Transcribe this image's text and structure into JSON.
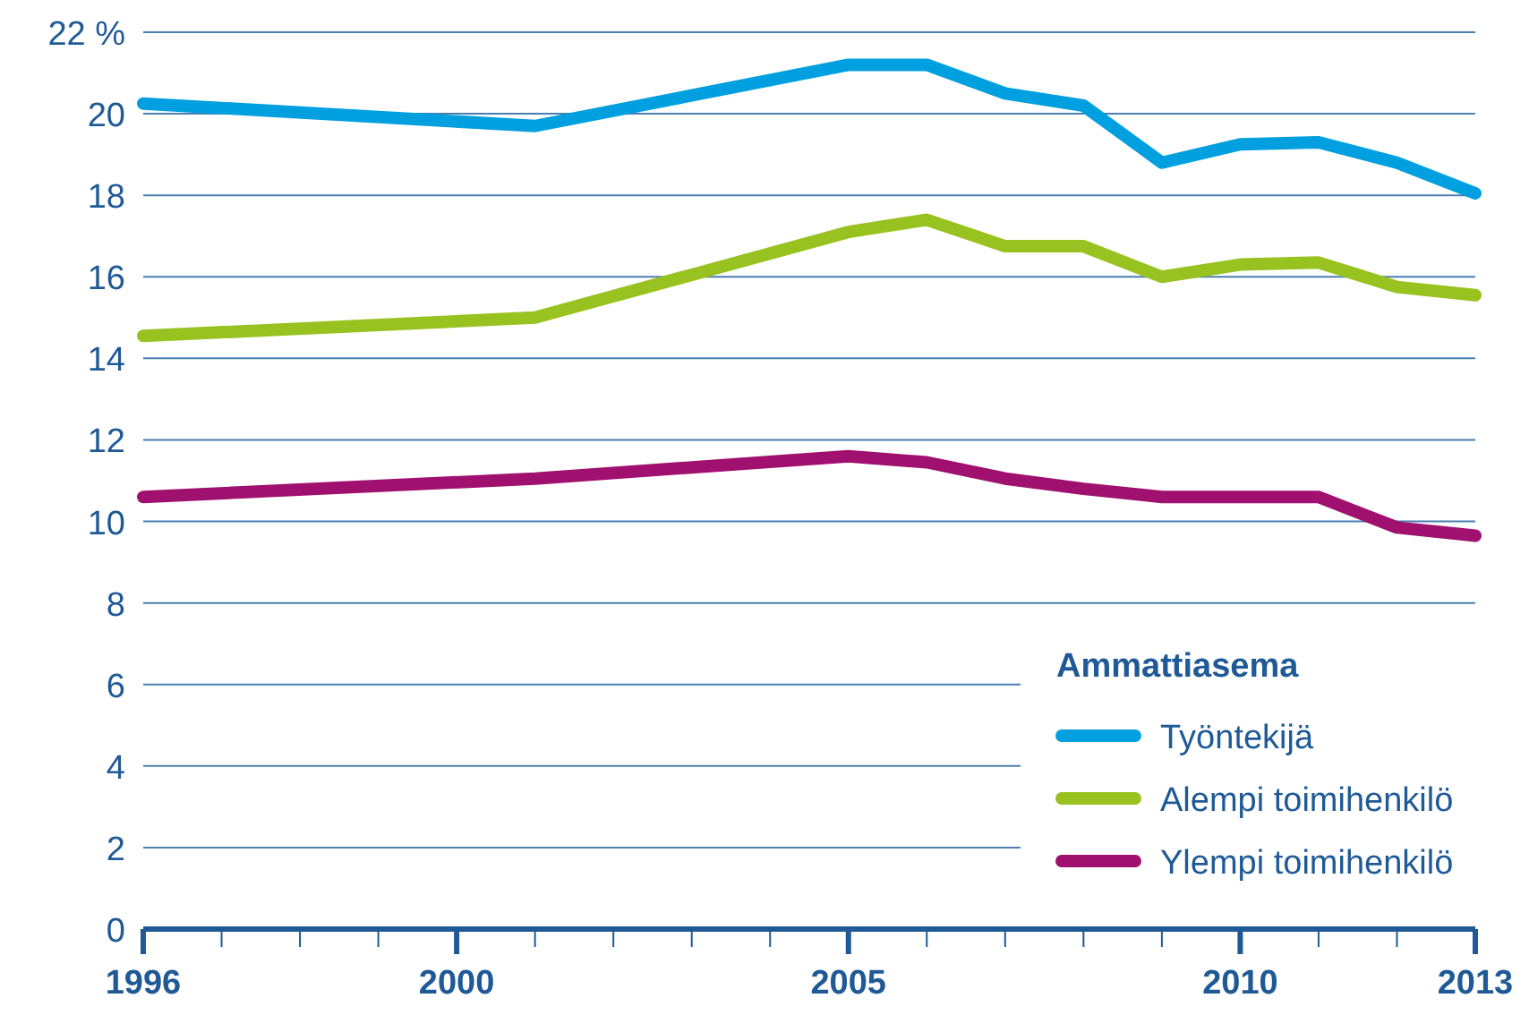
{
  "chart_data": {
    "type": "line",
    "legend_title": "Ammattiasema",
    "legend": "bottom right",
    "grid": "y",
    "line_style": "solid",
    "x": [
      1996,
      2001,
      2005,
      2006,
      2007,
      2008,
      2009,
      2010,
      2011,
      2012,
      2013
    ],
    "xlim": [
      1996,
      2013
    ],
    "xticks": [
      1996,
      {
        "value": 1997,
        "label": null
      },
      {
        "value": 1998,
        "label": null
      },
      {
        "value": 1999,
        "label": null
      },
      2000,
      {
        "value": 2001,
        "label": null
      },
      {
        "value": 2002,
        "label": null
      },
      {
        "value": 2003,
        "label": null
      },
      {
        "value": 2004,
        "label": null
      },
      2005,
      {
        "value": 2006,
        "label": null
      },
      {
        "value": 2007,
        "label": null
      },
      {
        "value": 2008,
        "label": null
      },
      {
        "value": 2009,
        "label": null
      },
      2010,
      {
        "value": 2011,
        "label": null
      },
      {
        "value": 2012,
        "label": null
      },
      2013
    ],
    "ylim": [
      0,
      22
    ],
    "yticks": [
      0,
      2,
      4,
      6,
      8,
      10,
      12,
      14,
      16,
      18,
      20,
      {
        "value": 22,
        "label": "22 %"
      }
    ],
    "series": [
      {
        "name": "Työntekijä",
        "color": "#00a0e0",
        "values": [
          20.25,
          19.7,
          21.2,
          21.2,
          20.5,
          20.2,
          18.8,
          19.25,
          19.3,
          18.8,
          18.05
        ]
      },
      {
        "name": "Alempi toimihenkilö",
        "color": "#98c21f",
        "values": [
          14.55,
          15.0,
          17.1,
          17.4,
          16.75,
          16.75,
          16.0,
          16.3,
          16.35,
          15.75,
          15.55
        ]
      },
      {
        "name": "Ylempi toimihenkilö",
        "color": "#a0106e",
        "values": [
          10.6,
          11.05,
          11.6,
          11.45,
          11.05,
          10.8,
          10.6,
          10.6,
          10.6,
          9.85,
          9.65
        ]
      }
    ]
  }
}
